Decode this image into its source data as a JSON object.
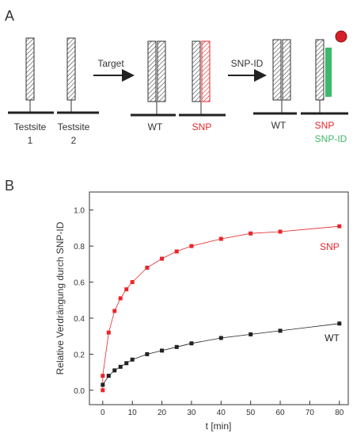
{
  "diagram": {
    "panel": "A",
    "arrows": [
      "Target",
      "SNP-ID"
    ],
    "sites": [
      {
        "label": "Testsite",
        "sub": "1"
      },
      {
        "label": "Testsite",
        "sub": "2"
      },
      {
        "label": "WT"
      },
      {
        "label": "SNP"
      },
      {
        "label": "WT"
      },
      {
        "label": "SNP",
        "sub": "SNP-ID"
      }
    ]
  },
  "chart_data": {
    "type": "scatter",
    "panel": "B",
    "xlabel": "t [min]",
    "ylabel": "Relative Verdrängung durch SNP-ID",
    "xlim": [
      -4.5,
      83
    ],
    "ylim": [
      -0.08,
      1.1
    ],
    "xticks": [
      0,
      10,
      20,
      30,
      40,
      50,
      60,
      70,
      80
    ],
    "yticks": [
      {
        "value": 0,
        "label": "0.0"
      },
      {
        "value": 0.2,
        "label": "0.2"
      },
      {
        "value": 0.4,
        "label": "0.4"
      },
      {
        "value": 0.6,
        "label": "0.6"
      },
      {
        "value": 0.8,
        "label": "0.8"
      },
      {
        "value": 1,
        "label": "1.0"
      }
    ],
    "series": [
      {
        "name": "SNP",
        "color": "#e8262b",
        "x": [
          0,
          0,
          2,
          4,
          6,
          8,
          10,
          15,
          20,
          25,
          30,
          40,
          50,
          60,
          80
        ],
        "values": [
          0.0,
          0.08,
          0.32,
          0.44,
          0.51,
          0.56,
          0.6,
          0.68,
          0.73,
          0.77,
          0.8,
          0.84,
          0.87,
          0.88,
          0.91
        ]
      },
      {
        "name": "WT",
        "color": "#222222",
        "x": [
          0,
          2,
          4,
          6,
          8,
          10,
          15,
          20,
          25,
          30,
          40,
          50,
          60,
          80
        ],
        "values": [
          0.03,
          0.08,
          0.11,
          0.13,
          0.15,
          0.17,
          0.2,
          0.22,
          0.24,
          0.26,
          0.29,
          0.31,
          0.33,
          0.37
        ]
      }
    ]
  }
}
